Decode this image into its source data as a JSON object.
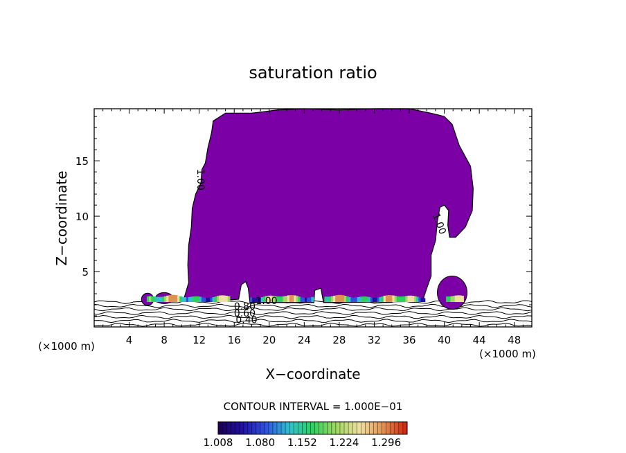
{
  "chart_data": {
    "type": "contour",
    "title": "saturation ratio",
    "xlabel": "X−coordinate",
    "ylabel": "Z−coordinate",
    "x_unit_left": "(×1000 m)",
    "x_unit_right": "(×1000 m)",
    "xlim": [
      0,
      50
    ],
    "ylim": [
      0,
      19.7
    ],
    "xticks": [
      4,
      8,
      12,
      16,
      20,
      24,
      28,
      32,
      36,
      40,
      44,
      48
    ],
    "yticks": [
      5,
      10,
      15
    ],
    "grid": false,
    "contour_interval_text": "CONTOUR INTERVAL = 1.000E−01",
    "contour_labels": [
      {
        "text": "1.00",
        "x": 12.1,
        "z": 13.3,
        "rotate": 90
      },
      {
        "text": "1.00",
        "x": 39.4,
        "z": 9.3,
        "rotate": 70
      },
      {
        "text": "1.00",
        "x": 19.7,
        "z": 2.3,
        "rotate": 0
      },
      {
        "text": "0.80",
        "x": 17.2,
        "z": 1.8,
        "rotate": 0
      },
      {
        "text": "0.60",
        "x": 17.2,
        "z": 1.2,
        "rotate": 0
      },
      {
        "text": "0.40",
        "x": 17.4,
        "z": 0.6,
        "rotate": 0
      }
    ],
    "saturated_region": {
      "value": 1.0,
      "color": "#7b00a5",
      "outline": [
        [
          10.2,
          2.4
        ],
        [
          10.8,
          4.0
        ],
        [
          10.7,
          5.6
        ],
        [
          10.8,
          7.4
        ],
        [
          11.1,
          9.0
        ],
        [
          11.2,
          10.7
        ],
        [
          11.6,
          12.0
        ],
        [
          12.2,
          13.0
        ],
        [
          12.3,
          14.2
        ],
        [
          12.7,
          14.8
        ],
        [
          13.0,
          16.2
        ],
        [
          13.4,
          17.5
        ],
        [
          13.6,
          18.6
        ],
        [
          15.0,
          19.3
        ],
        [
          18.0,
          19.3
        ],
        [
          21.0,
          19.6
        ],
        [
          24.0,
          19.7
        ],
        [
          28.0,
          19.6
        ],
        [
          32.0,
          19.7
        ],
        [
          36.0,
          19.7
        ],
        [
          38.5,
          19.3
        ],
        [
          40.0,
          19.0
        ],
        [
          40.9,
          18.3
        ],
        [
          41.7,
          16.4
        ],
        [
          43.0,
          14.5
        ],
        [
          43.3,
          12.5
        ],
        [
          43.2,
          10.5
        ],
        [
          42.4,
          9.0
        ],
        [
          41.3,
          8.1
        ],
        [
          40.6,
          8.1
        ],
        [
          40.4,
          9.2
        ],
        [
          40.5,
          10.5
        ],
        [
          40.0,
          11.0
        ],
        [
          39.5,
          10.8
        ],
        [
          39.2,
          9.5
        ],
        [
          39.0,
          7.8
        ],
        [
          38.5,
          6.5
        ],
        [
          38.5,
          4.6
        ],
        [
          38.0,
          3.5
        ],
        [
          37.5,
          2.3
        ],
        [
          28.0,
          2.2
        ],
        [
          26.2,
          2.2
        ],
        [
          25.9,
          3.5
        ],
        [
          25.2,
          3.3
        ],
        [
          25.1,
          2.2
        ],
        [
          17.8,
          2.2
        ],
        [
          17.6,
          3.5
        ],
        [
          17.3,
          4.1
        ],
        [
          16.8,
          3.8
        ],
        [
          16.5,
          2.5
        ],
        [
          15.0,
          2.4
        ],
        [
          13.0,
          2.4
        ],
        [
          10.2,
          2.4
        ]
      ]
    },
    "small_cells": [
      {
        "x": 40.9,
        "z": 3.1,
        "rx": 1.7,
        "ry": 1.5,
        "color": "#7b00a5"
      },
      {
        "x": 6.1,
        "z": 2.5,
        "rx": 0.7,
        "ry": 0.55,
        "color": "#7b00a5"
      },
      {
        "x": 8.0,
        "z": 2.6,
        "rx": 1.0,
        "ry": 0.5,
        "color": "#7b00a5"
      }
    ],
    "isolines_z": [
      2.25,
      1.9,
      1.6,
      1.25,
      0.9,
      0.55,
      0.2
    ],
    "colorbar": {
      "min": 1.008,
      "max": 1.332,
      "tick_labels": [
        "1.008",
        "1.080",
        "1.152",
        "1.224",
        "1.296"
      ],
      "colors": [
        "#1a0050",
        "#2010a0",
        "#3050e0",
        "#30c0d0",
        "#30d060",
        "#a0d860",
        "#f0e0a0",
        "#e09050",
        "#d02010"
      ]
    }
  }
}
